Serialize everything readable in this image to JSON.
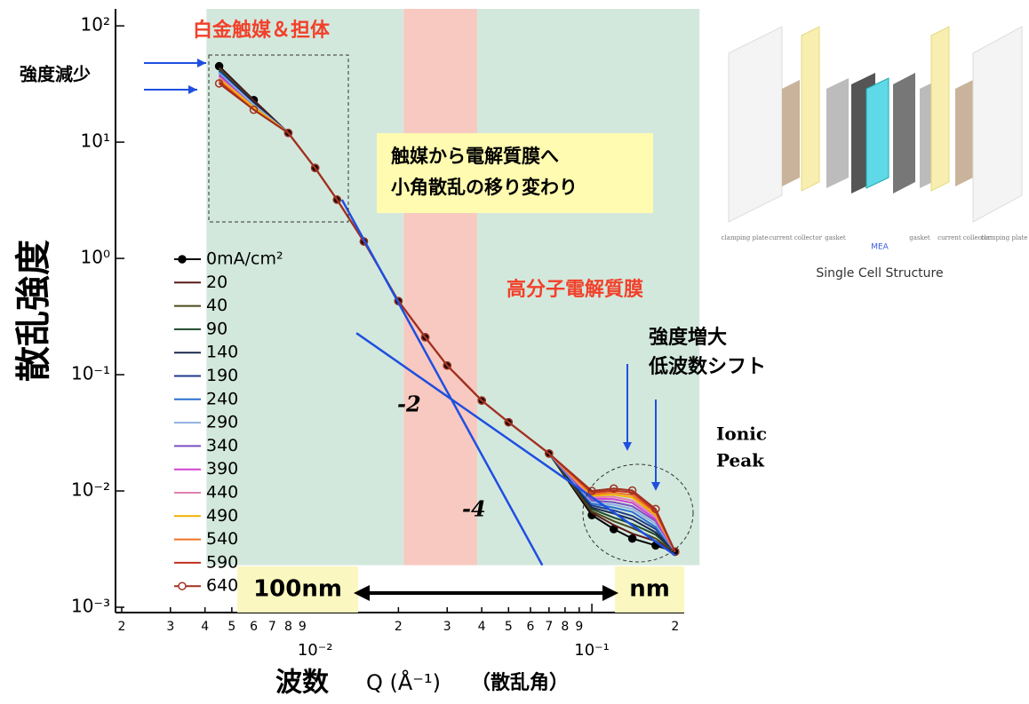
{
  "chart_data": {
    "type": "line",
    "x_label": "波数",
    "x_label_sym": "Q (Å⁻¹)",
    "x_label_note": "（散乱角）",
    "y_label": "散乱強度",
    "log_x": true,
    "log_y": true,
    "xlim": [
      0.0019,
      0.25
    ],
    "ylim": [
      0.0009,
      140
    ],
    "xticks": [
      {
        "value": 0.002,
        "label": "2"
      },
      {
        "value": 0.003,
        "label": "3"
      },
      {
        "value": 0.004,
        "label": "4"
      },
      {
        "value": 0.005,
        "label": "5"
      },
      {
        "value": 0.006,
        "label": "6"
      },
      {
        "value": 0.007,
        "label": "7"
      },
      {
        "value": 0.008,
        "label": "8"
      },
      {
        "value": 0.009,
        "label": "9"
      },
      {
        "value": 0.01,
        "label": "10⁻²"
      },
      {
        "value": 0.02,
        "label": "2"
      },
      {
        "value": 0.03,
        "label": "3"
      },
      {
        "value": 0.04,
        "label": "4"
      },
      {
        "value": 0.05,
        "label": "5"
      },
      {
        "value": 0.06,
        "label": "6"
      },
      {
        "value": 0.07,
        "label": "7"
      },
      {
        "value": 0.08,
        "label": "8"
      },
      {
        "value": 0.09,
        "label": "9"
      },
      {
        "value": 0.1,
        "label": "10⁻¹"
      },
      {
        "value": 0.2,
        "label": "2"
      }
    ],
    "yticks": [
      {
        "value": 0.001,
        "label": "10⁻³"
      },
      {
        "value": 0.01,
        "label": "10⁻²"
      },
      {
        "value": 0.1,
        "label": "10⁻¹"
      },
      {
        "value": 1,
        "label": "10⁰"
      },
      {
        "value": 10,
        "label": "10¹"
      },
      {
        "value": 100,
        "label": "10²"
      }
    ],
    "regions": [
      {
        "x": [
          0.00405,
          0.0209
        ],
        "y": [
          0.0023,
          140
        ],
        "color": "#d3e8dd"
      },
      {
        "x": [
          0.0209,
          0.0385
        ],
        "y": [
          0.0023,
          140
        ],
        "color": "#f8c9c0"
      },
      {
        "x": [
          0.0385,
          0.245
        ],
        "y": [
          0.0023,
          140
        ],
        "color": "#d3e8dd"
      }
    ],
    "x": [
      0.0045,
      0.006,
      0.008,
      0.01,
      0.012,
      0.015,
      0.02,
      0.025,
      0.03,
      0.04,
      0.05,
      0.07,
      0.1,
      0.12,
      0.14,
      0.17,
      0.2
    ],
    "series": [
      {
        "name": "0mA/cm²",
        "color": "#000000",
        "marker": "filled",
        "values": [
          45,
          23,
          12,
          6,
          3.2,
          1.4,
          0.43,
          0.21,
          0.12,
          0.06,
          0.039,
          0.021,
          0.0062,
          0.0047,
          0.0039,
          0.0034,
          0.003
        ]
      },
      {
        "name": "20",
        "color": "#5a1a1a",
        "values": [
          44,
          23,
          12,
          6,
          3.2,
          1.4,
          0.43,
          0.21,
          0.12,
          0.06,
          0.039,
          0.021,
          0.0065,
          0.0051,
          0.0043,
          0.0037,
          0.003
        ]
      },
      {
        "name": "40",
        "color": "#4a4a1a",
        "values": [
          43,
          22,
          12,
          6,
          3.2,
          1.4,
          0.43,
          0.21,
          0.12,
          0.06,
          0.039,
          0.021,
          0.0067,
          0.0055,
          0.0048,
          0.0039,
          0.003
        ]
      },
      {
        "name": "90",
        "color": "#1f4a2a",
        "values": [
          42,
          22,
          12,
          6,
          3.2,
          1.4,
          0.43,
          0.21,
          0.12,
          0.06,
          0.039,
          0.021,
          0.007,
          0.0059,
          0.0052,
          0.0042,
          0.003
        ]
      },
      {
        "name": "140",
        "color": "#1a2a4a",
        "values": [
          41,
          22,
          12,
          6,
          3.2,
          1.4,
          0.43,
          0.21,
          0.12,
          0.06,
          0.039,
          0.021,
          0.0072,
          0.0064,
          0.0057,
          0.0044,
          0.003
        ]
      },
      {
        "name": "190",
        "color": "#1e3a8a",
        "values": [
          41,
          21,
          12,
          6,
          3.2,
          1.4,
          0.43,
          0.21,
          0.12,
          0.06,
          0.039,
          0.021,
          0.0075,
          0.0068,
          0.0061,
          0.0047,
          0.003
        ]
      },
      {
        "name": "240",
        "color": "#2a6fd0",
        "values": [
          40,
          21,
          12,
          6,
          3.2,
          1.4,
          0.43,
          0.21,
          0.12,
          0.06,
          0.039,
          0.021,
          0.0078,
          0.0072,
          0.0066,
          0.0049,
          0.003
        ]
      },
      {
        "name": "290",
        "color": "#8fb0e0",
        "values": [
          39,
          21,
          12,
          6,
          3.2,
          1.4,
          0.43,
          0.21,
          0.12,
          0.06,
          0.039,
          0.021,
          0.008,
          0.0076,
          0.007,
          0.0052,
          0.003
        ]
      },
      {
        "name": "340",
        "color": "#7a50c0",
        "values": [
          38,
          20,
          12,
          6,
          3.2,
          1.4,
          0.43,
          0.21,
          0.12,
          0.06,
          0.039,
          0.021,
          0.0083,
          0.008,
          0.0074,
          0.0055,
          0.003
        ]
      },
      {
        "name": "390",
        "color": "#d040d0",
        "values": [
          37,
          20,
          12,
          6,
          3.2,
          1.4,
          0.43,
          0.21,
          0.12,
          0.06,
          0.039,
          0.021,
          0.0086,
          0.0085,
          0.0079,
          0.0057,
          0.003
        ]
      },
      {
        "name": "440",
        "color": "#e080b0",
        "values": [
          36,
          20,
          12,
          6,
          3.2,
          1.4,
          0.43,
          0.21,
          0.12,
          0.06,
          0.039,
          0.021,
          0.0088,
          0.0089,
          0.0083,
          0.006,
          0.003
        ]
      },
      {
        "name": "490",
        "color": "#f0b000",
        "values": [
          35,
          20,
          12,
          6,
          3.2,
          1.4,
          0.43,
          0.21,
          0.12,
          0.06,
          0.039,
          0.021,
          0.0091,
          0.0093,
          0.0088,
          0.0062,
          0.003
        ]
      },
      {
        "name": "540",
        "color": "#f07020",
        "values": [
          34,
          19,
          12,
          6,
          3.2,
          1.4,
          0.43,
          0.21,
          0.12,
          0.06,
          0.039,
          0.021,
          0.0094,
          0.0097,
          0.0092,
          0.0065,
          0.003
        ]
      },
      {
        "name": "590",
        "color": "#c03020",
        "values": [
          33,
          19,
          12,
          6,
          3.2,
          1.4,
          0.43,
          0.21,
          0.12,
          0.06,
          0.039,
          0.021,
          0.0097,
          0.0101,
          0.0097,
          0.0067,
          0.003
        ]
      },
      {
        "name": "640",
        "color": "#a03020",
        "marker": "open",
        "values": [
          32,
          19,
          12,
          6,
          3.2,
          1.4,
          0.43,
          0.21,
          0.12,
          0.06,
          0.039,
          0.021,
          0.01,
          0.0105,
          0.0101,
          0.007,
          0.003
        ]
      }
    ],
    "fits": [
      {
        "label": "-2",
        "color": "#1f4fe0",
        "x": [
          0.0141,
          0.2
        ],
        "y": [
          0.228,
          0.0028
        ]
      },
      {
        "label": "-4",
        "color": "#1f4fe0",
        "x": [
          0.0125,
          0.0662
        ],
        "y": [
          3.2,
          0.0023
        ]
      }
    ],
    "annotations": {
      "pt": "白金触媒＆担体",
      "decrease": "強度減少",
      "transition": [
        "触媒から電解質膜へ",
        "小角散乱の移り変わり"
      ],
      "polymer": "高分子電解質膜",
      "increase": [
        "強度増大",
        "低波数シフト"
      ],
      "ionic": [
        "Ionic",
        "Peak"
      ],
      "left_scale": "100nm",
      "right_scale": "nm"
    }
  },
  "diagram": {
    "title": "Single Cell Structure",
    "labels": [
      "clamping plate",
      "current collector",
      "gasket",
      "MEA",
      "gasket",
      "current collector",
      "clamping plate"
    ]
  }
}
